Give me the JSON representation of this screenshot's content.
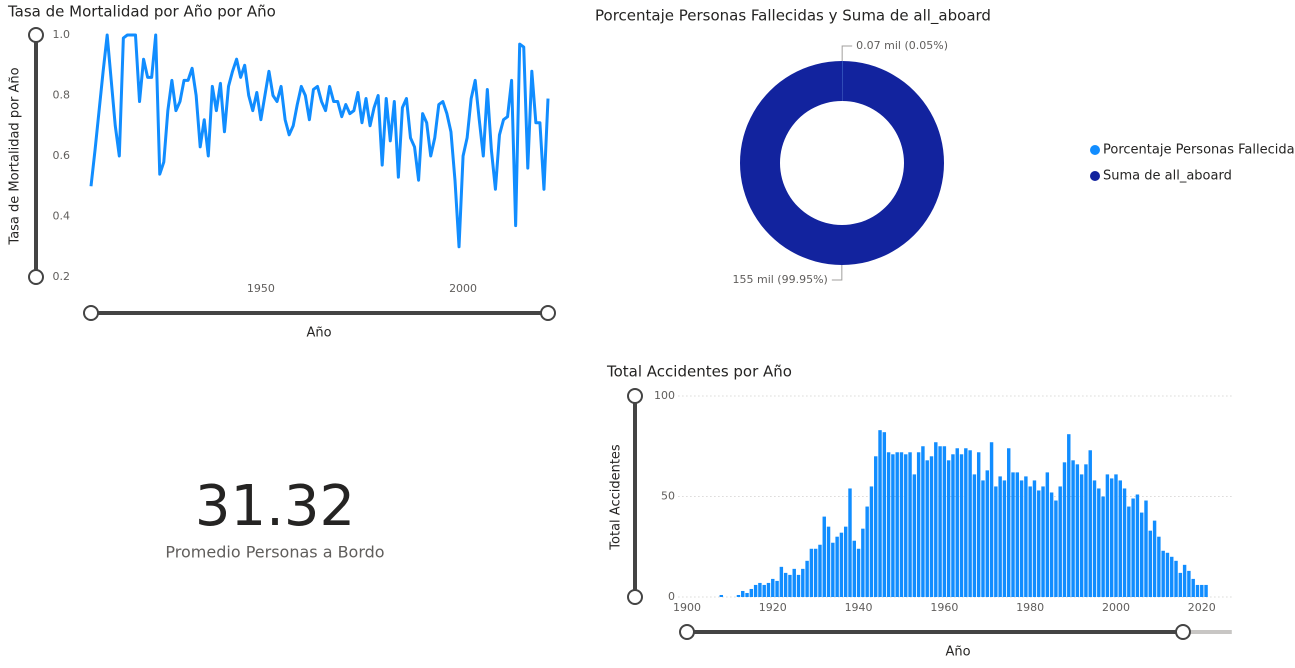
{
  "chart_data": [
    {
      "type": "line",
      "title": "Tasa de Mortalidad por Año por Año",
      "x_label": "Año",
      "y_label": "Tasa de Mortalidad por Año",
      "color": "#118dff",
      "grid": false,
      "x": [
        1908,
        1909,
        1910,
        1911,
        1912,
        1913,
        1914,
        1915,
        1916,
        1917,
        1918,
        1919,
        1920,
        1921,
        1922,
        1923,
        1924,
        1925,
        1926,
        1927,
        1928,
        1929,
        1930,
        1931,
        1932,
        1933,
        1934,
        1935,
        1936,
        1937,
        1938,
        1939,
        1940,
        1941,
        1942,
        1943,
        1944,
        1945,
        1946,
        1947,
        1948,
        1949,
        1950,
        1951,
        1952,
        1953,
        1954,
        1955,
        1956,
        1957,
        1958,
        1959,
        1960,
        1961,
        1962,
        1963,
        1964,
        1965,
        1966,
        1967,
        1968,
        1969,
        1970,
        1971,
        1972,
        1973,
        1974,
        1975,
        1976,
        1977,
        1978,
        1979,
        1980,
        1981,
        1982,
        1983,
        1984,
        1985,
        1986,
        1987,
        1988,
        1989,
        1990,
        1991,
        1992,
        1993,
        1994,
        1995,
        1996,
        1997,
        1998,
        1999,
        2000,
        2001,
        2002,
        2003,
        2004,
        2005,
        2006,
        2007,
        2008,
        2009,
        2010,
        2011,
        2012,
        2013,
        2014,
        2015,
        2016,
        2017,
        2018,
        2019,
        2020,
        2021
      ],
      "values": [
        0.5,
        0.62,
        0.75,
        0.88,
        1.0,
        0.85,
        0.7,
        0.6,
        0.99,
        1.0,
        1.0,
        1.0,
        0.78,
        0.92,
        0.86,
        0.86,
        1.0,
        0.54,
        0.58,
        0.75,
        0.85,
        0.75,
        0.78,
        0.85,
        0.85,
        0.89,
        0.8,
        0.63,
        0.72,
        0.6,
        0.83,
        0.75,
        0.84,
        0.68,
        0.83,
        0.88,
        0.92,
        0.86,
        0.9,
        0.8,
        0.75,
        0.81,
        0.72,
        0.8,
        0.88,
        0.8,
        0.78,
        0.83,
        0.72,
        0.67,
        0.7,
        0.77,
        0.83,
        0.8,
        0.72,
        0.82,
        0.83,
        0.78,
        0.75,
        0.83,
        0.78,
        0.78,
        0.73,
        0.77,
        0.74,
        0.75,
        0.81,
        0.71,
        0.79,
        0.7,
        0.76,
        0.8,
        0.57,
        0.79,
        0.65,
        0.78,
        0.53,
        0.76,
        0.79,
        0.66,
        0.63,
        0.52,
        0.74,
        0.71,
        0.6,
        0.66,
        0.77,
        0.78,
        0.74,
        0.68,
        0.52,
        0.3,
        0.6,
        0.66,
        0.79,
        0.85,
        0.72,
        0.6,
        0.82,
        0.62,
        0.49,
        0.67,
        0.72,
        0.73,
        0.85,
        0.37,
        0.97,
        0.96,
        0.56,
        0.88,
        0.71,
        0.71,
        0.49,
        0.79
      ],
      "xlim": [
        1908,
        2021
      ],
      "xticks": [
        1950,
        2000
      ],
      "ylim": [
        0.2,
        1.0
      ],
      "yticks": [
        0.2,
        0.4,
        0.6,
        0.8,
        {
          "value": 1.0,
          "label": "1.0"
        }
      ]
    },
    {
      "type": "pie",
      "title": "Porcentaje Personas Fallecidas y Suma de all_aboard",
      "categories": [
        "Porcentaje Personas Fallecidas",
        "Suma de all_aboard"
      ],
      "values": [
        0.05,
        99.95
      ],
      "value_labels": [
        "0.07 mil (0.05%)",
        "155 mil (99.95%)"
      ],
      "colors": [
        "#118dff",
        "#12239e"
      ],
      "donut": true,
      "legend": "right"
    },
    {
      "type": "card",
      "value": 31.32,
      "label": "Promedio Personas a Bordo"
    },
    {
      "type": "bar",
      "title": "Total Accidentes por Año",
      "x_label": "Año",
      "y_label": "Total Accidentes",
      "color": "#118dff",
      "grid": true,
      "x": [
        1908,
        1909,
        1910,
        1911,
        1912,
        1913,
        1914,
        1915,
        1916,
        1917,
        1918,
        1919,
        1920,
        1921,
        1922,
        1923,
        1924,
        1925,
        1926,
        1927,
        1928,
        1929,
        1930,
        1931,
        1932,
        1933,
        1934,
        1935,
        1936,
        1937,
        1938,
        1939,
        1940,
        1941,
        1942,
        1943,
        1944,
        1945,
        1946,
        1947,
        1948,
        1949,
        1950,
        1951,
        1952,
        1953,
        1954,
        1955,
        1956,
        1957,
        1958,
        1959,
        1960,
        1961,
        1962,
        1963,
        1964,
        1965,
        1966,
        1967,
        1968,
        1969,
        1970,
        1971,
        1972,
        1973,
        1974,
        1975,
        1976,
        1977,
        1978,
        1979,
        1980,
        1981,
        1982,
        1983,
        1984,
        1985,
        1986,
        1987,
        1988,
        1989,
        1990,
        1991,
        1992,
        1993,
        1994,
        1995,
        1996,
        1997,
        1998,
        1999,
        2000,
        2001,
        2002,
        2003,
        2004,
        2005,
        2006,
        2007,
        2008,
        2009,
        2010,
        2011,
        2012,
        2013,
        2014,
        2015,
        2016,
        2017,
        2018,
        2019,
        2020,
        2021
      ],
      "values": [
        1,
        0,
        0,
        0,
        1,
        3,
        2,
        4,
        6,
        7,
        6,
        7,
        9,
        8,
        15,
        12,
        11,
        14,
        11,
        14,
        18,
        24,
        24,
        26,
        40,
        35,
        27,
        30,
        32,
        35,
        54,
        28,
        24,
        34,
        45,
        55,
        70,
        83,
        82,
        72,
        71,
        72,
        72,
        71,
        72,
        61,
        72,
        75,
        68,
        70,
        77,
        75,
        75,
        68,
        71,
        74,
        71,
        74,
        73,
        61,
        72,
        58,
        63,
        77,
        55,
        60,
        58,
        74,
        62,
        62,
        58,
        60,
        55,
        58,
        53,
        55,
        62,
        52,
        48,
        55,
        67,
        81,
        68,
        66,
        61,
        66,
        73,
        58,
        54,
        50,
        61,
        59,
        61,
        58,
        54,
        45,
        49,
        51,
        42,
        48,
        33,
        38,
        30,
        23,
        22,
        20,
        18,
        12,
        16,
        13,
        9,
        6,
        6,
        6
      ],
      "xlim": [
        1898,
        2027
      ],
      "xticks": [
        1900,
        1920,
        1940,
        1960,
        1980,
        2000,
        2020
      ],
      "ylim": [
        0,
        100
      ],
      "yticks": [
        0,
        50,
        100
      ]
    }
  ]
}
